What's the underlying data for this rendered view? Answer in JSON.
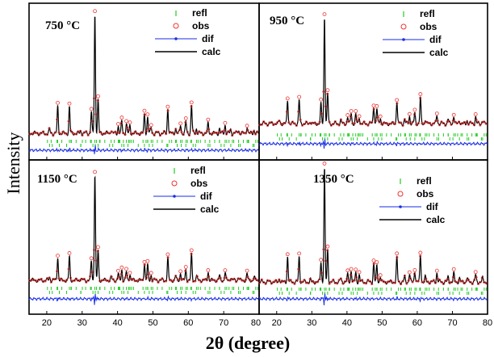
{
  "chart_data": {
    "type": "line",
    "xlabel": "2θ (degree)",
    "ylabel": "Intensity",
    "xlim": [
      15,
      80
    ],
    "xticks": [
      20,
      30,
      40,
      50,
      60,
      70,
      80
    ],
    "legend": [
      "refl",
      "obs",
      "dif",
      "calc"
    ],
    "legend_placement": "top-right",
    "colors": {
      "refl": "#22cc22",
      "obs": "#ee3333",
      "dif": "#1a2ee6",
      "calc": "#000000"
    },
    "peaks": [
      {
        "x": 20.8,
        "h": 0.03
      },
      {
        "x": 23.1,
        "h": 0.22
      },
      {
        "x": 26.4,
        "h": 0.22
      },
      {
        "x": 29.6,
        "h": 0.02
      },
      {
        "x": 32.6,
        "h": 0.18
      },
      {
        "x": 33.6,
        "h": 1.0
      },
      {
        "x": 34.5,
        "h": 0.28
      },
      {
        "x": 38.2,
        "h": 0.03
      },
      {
        "x": 40.2,
        "h": 0.06
      },
      {
        "x": 41.2,
        "h": 0.1
      },
      {
        "x": 42.5,
        "h": 0.08
      },
      {
        "x": 43.5,
        "h": 0.06
      },
      {
        "x": 47.6,
        "h": 0.16
      },
      {
        "x": 48.5,
        "h": 0.14
      },
      {
        "x": 49.5,
        "h": 0.05
      },
      {
        "x": 54.2,
        "h": 0.21
      },
      {
        "x": 56.4,
        "h": 0.04
      },
      {
        "x": 57.8,
        "h": 0.07
      },
      {
        "x": 59.3,
        "h": 0.1
      },
      {
        "x": 60.9,
        "h": 0.24
      },
      {
        "x": 62.3,
        "h": 0.04
      },
      {
        "x": 65.6,
        "h": 0.08
      },
      {
        "x": 68.8,
        "h": 0.04
      },
      {
        "x": 70.4,
        "h": 0.07
      },
      {
        "x": 72.0,
        "h": 0.03
      },
      {
        "x": 74.2,
        "h": 0.03
      },
      {
        "x": 76.6,
        "h": 0.06
      },
      {
        "x": 78.6,
        "h": 0.03
      }
    ],
    "panels": [
      {
        "temperature": "750 °C"
      },
      {
        "temperature": "950 °C"
      },
      {
        "temperature": "1150 °C"
      },
      {
        "temperature": "1350 °C"
      }
    ]
  }
}
